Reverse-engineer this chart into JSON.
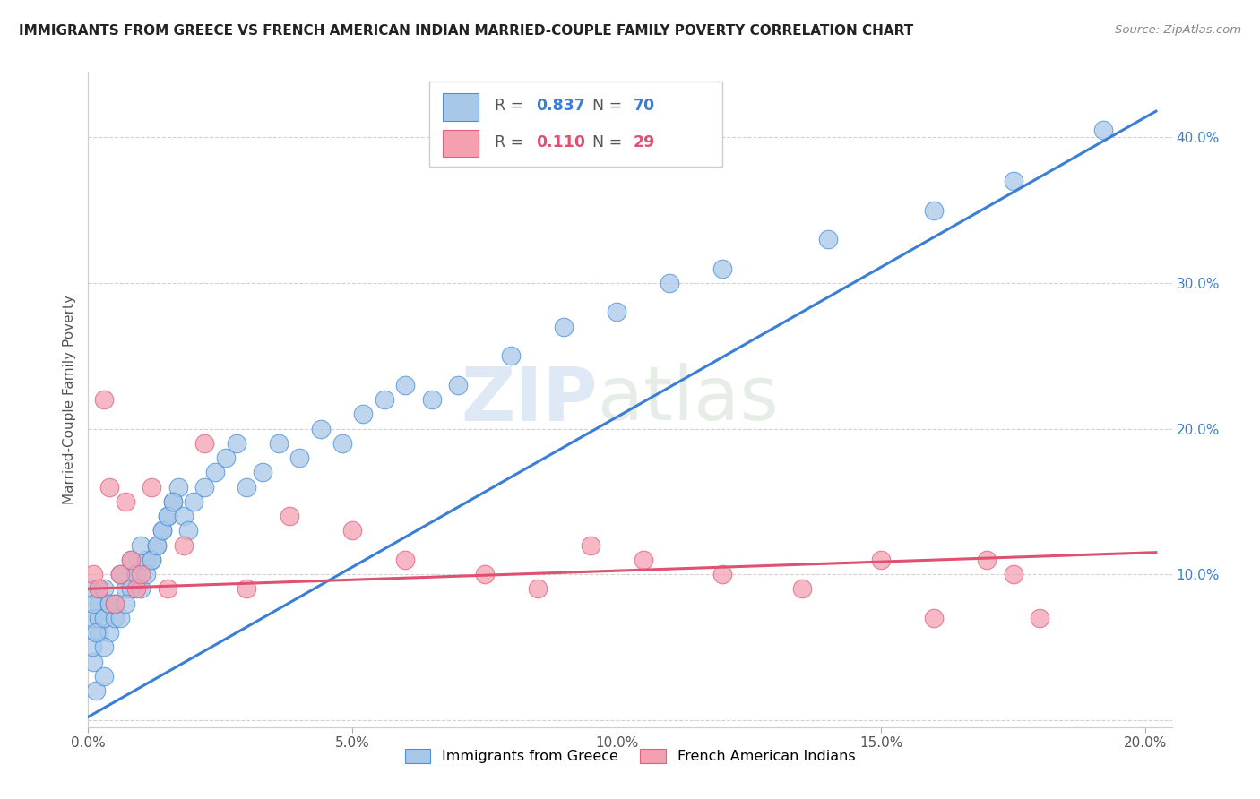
{
  "title": "IMMIGRANTS FROM GREECE VS FRENCH AMERICAN INDIAN MARRIED-COUPLE FAMILY POVERTY CORRELATION CHART",
  "source": "Source: ZipAtlas.com",
  "ylabel": "Married-Couple Family Poverty",
  "xlim": [
    0,
    0.205
  ],
  "ylim": [
    -0.005,
    0.445
  ],
  "watermark": "ZIPatlas",
  "legend_blue_r_val": "0.837",
  "legend_blue_n_val": "70",
  "legend_pink_r_val": "0.110",
  "legend_pink_n_val": "29",
  "blue_fill": "#a8c8e8",
  "blue_edge": "#4a90d9",
  "pink_fill": "#f4a0b0",
  "pink_edge": "#e06080",
  "trend_blue": "#3a7fd5",
  "trend_pink": "#e05070",
  "blue_scatter_x": [
    0.001,
    0.0015,
    0.002,
    0.0008,
    0.003,
    0.001,
    0.002,
    0.0005,
    0.004,
    0.003,
    0.002,
    0.001,
    0.0015,
    0.003,
    0.002,
    0.004,
    0.005,
    0.003,
    0.004,
    0.006,
    0.005,
    0.007,
    0.006,
    0.008,
    0.007,
    0.009,
    0.008,
    0.01,
    0.009,
    0.011,
    0.01,
    0.012,
    0.011,
    0.013,
    0.012,
    0.014,
    0.013,
    0.015,
    0.014,
    0.016,
    0.015,
    0.017,
    0.016,
    0.018,
    0.019,
    0.02,
    0.022,
    0.024,
    0.026,
    0.028,
    0.03,
    0.033,
    0.036,
    0.04,
    0.044,
    0.048,
    0.052,
    0.056,
    0.06,
    0.065,
    0.07,
    0.08,
    0.09,
    0.1,
    0.11,
    0.12,
    0.14,
    0.16,
    0.175,
    0.192
  ],
  "blue_scatter_y": [
    0.04,
    0.02,
    0.06,
    0.05,
    0.03,
    0.07,
    0.08,
    0.09,
    0.06,
    0.05,
    0.07,
    0.08,
    0.06,
    0.07,
    0.09,
    0.08,
    0.07,
    0.09,
    0.08,
    0.07,
    0.08,
    0.09,
    0.1,
    0.09,
    0.08,
    0.1,
    0.11,
    0.09,
    0.1,
    0.11,
    0.12,
    0.11,
    0.1,
    0.12,
    0.11,
    0.13,
    0.12,
    0.14,
    0.13,
    0.15,
    0.14,
    0.16,
    0.15,
    0.14,
    0.13,
    0.15,
    0.16,
    0.17,
    0.18,
    0.19,
    0.16,
    0.17,
    0.19,
    0.18,
    0.2,
    0.19,
    0.21,
    0.22,
    0.23,
    0.22,
    0.23,
    0.25,
    0.27,
    0.28,
    0.3,
    0.31,
    0.33,
    0.35,
    0.37,
    0.405
  ],
  "pink_scatter_x": [
    0.001,
    0.002,
    0.003,
    0.004,
    0.005,
    0.006,
    0.007,
    0.008,
    0.009,
    0.01,
    0.012,
    0.015,
    0.018,
    0.022,
    0.03,
    0.038,
    0.05,
    0.06,
    0.075,
    0.085,
    0.095,
    0.105,
    0.12,
    0.135,
    0.15,
    0.16,
    0.17,
    0.175,
    0.18
  ],
  "pink_scatter_y": [
    0.1,
    0.09,
    0.22,
    0.16,
    0.08,
    0.1,
    0.15,
    0.11,
    0.09,
    0.1,
    0.16,
    0.09,
    0.12,
    0.19,
    0.09,
    0.14,
    0.13,
    0.11,
    0.1,
    0.09,
    0.12,
    0.11,
    0.1,
    0.09,
    0.11,
    0.07,
    0.11,
    0.1,
    0.07
  ],
  "blue_line_x": [
    0.0,
    0.202
  ],
  "blue_line_y": [
    0.002,
    0.418
  ],
  "pink_line_x": [
    0.0,
    0.202
  ],
  "pink_line_y": [
    0.09,
    0.115
  ],
  "ytick_vals": [
    0.0,
    0.1,
    0.2,
    0.3,
    0.4
  ],
  "ytick_labels": [
    "",
    "10.0%",
    "20.0%",
    "30.0%",
    "40.0%"
  ],
  "xtick_vals": [
    0.0,
    0.05,
    0.1,
    0.15,
    0.2
  ],
  "xtick_labels": [
    "0.0%",
    "5.0%",
    "10.0%",
    "15.0%",
    "20.0%"
  ]
}
